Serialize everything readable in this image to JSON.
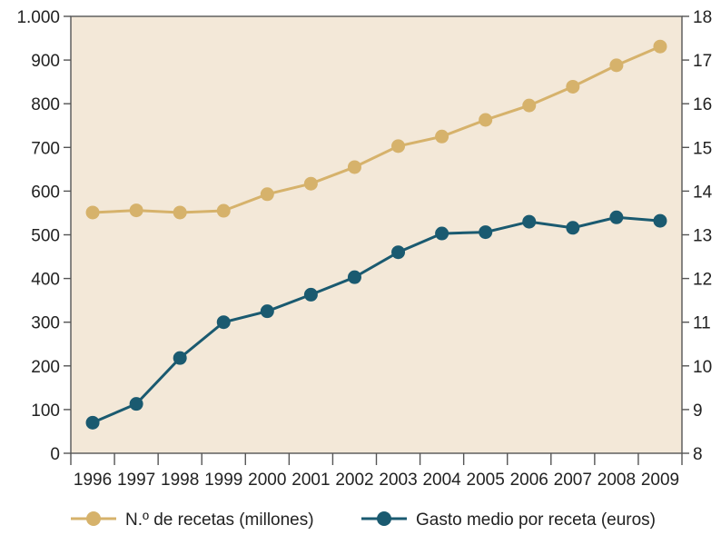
{
  "chart_data": {
    "type": "line",
    "title": "",
    "xlabel": "",
    "ylabel": "",
    "categories": [
      "1996",
      "1997",
      "1998",
      "1999",
      "2000",
      "2001",
      "2002",
      "2003",
      "2004",
      "2005",
      "2006",
      "2007",
      "2008",
      "2009"
    ],
    "y_left": {
      "ylim": [
        0,
        1000
      ],
      "ticks": [
        0,
        100,
        200,
        300,
        400,
        500,
        600,
        700,
        800,
        900,
        1000
      ],
      "tick_labels": [
        "0",
        "100",
        "200",
        "300",
        "400",
        "500",
        "600",
        "700",
        "800",
        "900",
        "1.000"
      ]
    },
    "y_right": {
      "ylim": [
        8,
        18
      ],
      "ticks": [
        8,
        9,
        10,
        11,
        12,
        13,
        14,
        15,
        16,
        17,
        18
      ],
      "tick_labels": [
        "8",
        "9",
        "10",
        "11",
        "12",
        "13",
        "14",
        "15",
        "16",
        "17",
        "18"
      ]
    },
    "series": [
      {
        "name": "N.º de recetas (millones)",
        "axis": "left",
        "color": "#d6b26b",
        "values": [
          551,
          556,
          551,
          555,
          593,
          617,
          655,
          703,
          725,
          763,
          796,
          839,
          888,
          931
        ]
      },
      {
        "name": "Gasto medio por receta (euros)",
        "axis": "right",
        "color": "#1a5a70",
        "values": [
          8.7,
          9.13,
          10.18,
          11.0,
          11.25,
          11.63,
          12.03,
          12.6,
          13.03,
          13.06,
          13.3,
          13.16,
          13.4,
          13.32
        ]
      }
    ],
    "grid": false,
    "legend_position": "bottom",
    "colors": {
      "plot_background": "#f3e8d8",
      "axis": "#555555"
    }
  }
}
